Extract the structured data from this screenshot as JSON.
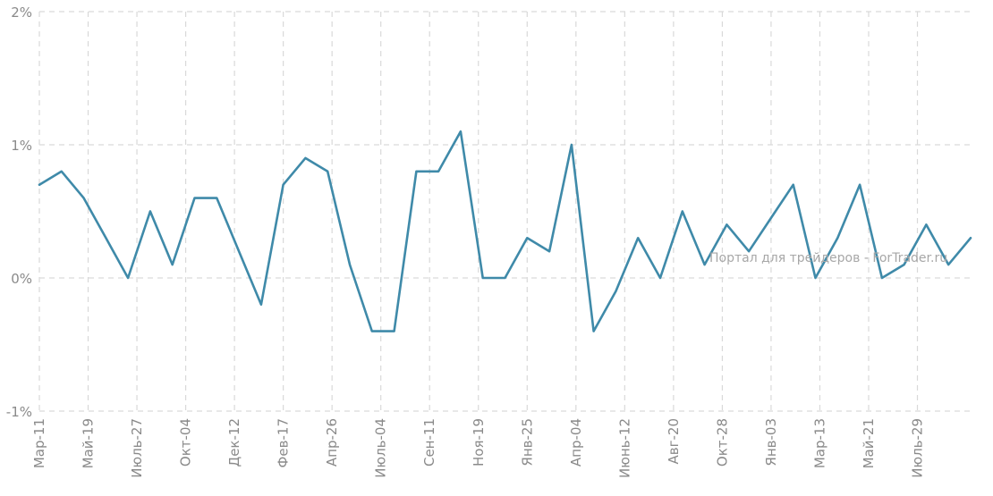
{
  "chart_data": {
    "type": "line",
    "title": "",
    "xlabel": "",
    "ylabel": "",
    "ylim": [
      -1,
      2
    ],
    "yticks": [
      "-1%",
      "0%",
      "1%",
      "2%"
    ],
    "ytick_values": [
      -1,
      0,
      1,
      2
    ],
    "grid": true,
    "x_tick_labels": [
      "Мар-11",
      "Май-19",
      "Июль-27",
      "Окт-04",
      "Дек-12",
      "Фев-17",
      "Апр-26",
      "Июль-04",
      "Сен-11",
      "Ноя-19",
      "Янв-25",
      "Апр-04",
      "Июнь-12",
      "Авг-20",
      "Окт-28",
      "Янв-03",
      "Мар-13",
      "Май-21",
      "Июль-29"
    ],
    "x_tick_positions": [
      0,
      2.2,
      4.4,
      6.6,
      8.8,
      11,
      13.2,
      15.4,
      17.6,
      19.8,
      22,
      24.2,
      26.4,
      28.6,
      30.8,
      33,
      35.2,
      37.4,
      39.6
    ],
    "series": [
      {
        "color": "#3f8aa9",
        "values": [
          0.7,
          0.8,
          0.6,
          0.3,
          0.0,
          0.5,
          0.1,
          0.6,
          0.6,
          0.2,
          -0.2,
          0.7,
          0.9,
          0.8,
          0.1,
          -0.4,
          -0.4,
          0.8,
          0.8,
          1.1,
          0.0,
          0.0,
          0.3,
          0.2,
          1.0,
          -0.4,
          -0.1,
          0.3,
          0.0,
          0.5,
          0.1,
          0.4,
          0.2,
          0.45,
          0.7,
          0.0,
          0.3,
          0.7,
          0.0,
          0.1,
          0.4,
          0.1,
          0.3
        ]
      }
    ],
    "watermark": "Портал для трейдеров - ForTrader.ru"
  }
}
